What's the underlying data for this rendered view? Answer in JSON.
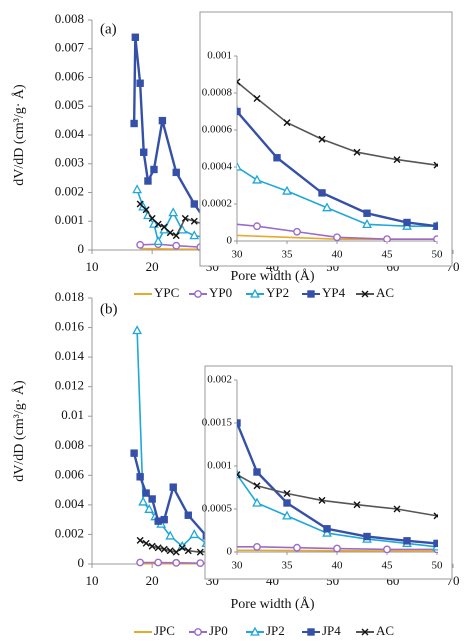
{
  "chart_data": [
    {
      "type": "line",
      "label": "(a)",
      "xlabel": "Pore width (Å)",
      "ylabel": "dV/dD (cm³/g· Å)",
      "xlim": [
        10,
        70
      ],
      "ylim": [
        0,
        0.008
      ],
      "xticks": [
        10,
        20,
        30,
        40,
        50,
        60,
        70
      ],
      "yticks": [
        0,
        0.001,
        0.002,
        0.003,
        0.004,
        0.005,
        0.006,
        0.007,
        0.008
      ],
      "legend": "bottom",
      "series": [
        {
          "name": "YPC",
          "color": "#e8a92a",
          "marker": "none",
          "x": [
            18,
            25,
            30,
            40,
            50
          ],
          "values": [
            5e-05,
            3e-05,
            3e-05,
            1e-05,
            1e-05
          ]
        },
        {
          "name": "YP0",
          "color": "#9b6bc8",
          "marker": "circle",
          "x": [
            18,
            21,
            24,
            28,
            32,
            36,
            40,
            45,
            50
          ],
          "values": [
            0.00018,
            0.0002,
            0.00015,
            0.0001,
            8e-05,
            5e-05,
            2e-05,
            1e-05,
            1e-05
          ]
        },
        {
          "name": "YP2",
          "color": "#1ea7d8",
          "marker": "triangle",
          "x": [
            17.5,
            18.5,
            19.3,
            20.3,
            21,
            22,
            23.5,
            25,
            27,
            30,
            32,
            35,
            39,
            43,
            47,
            50
          ],
          "values": [
            0.0021,
            0.0015,
            0.0012,
            0.0009,
            0.0003,
            0.0007,
            0.0013,
            0.0007,
            0.0005,
            0.0004,
            0.00033,
            0.00027,
            0.00018,
            9e-05,
            8e-05,
            8e-05
          ]
        },
        {
          "name": "YP4",
          "color": "#3550a8",
          "marker": "square",
          "x": [
            17,
            17.2,
            18,
            18.6,
            19.3,
            20.3,
            21.7,
            24,
            27,
            30,
            34,
            38.5,
            43,
            47,
            50
          ],
          "values": [
            0.0044,
            0.0074,
            0.0058,
            0.0034,
            0.0024,
            0.0028,
            0.0045,
            0.0027,
            0.0016,
            0.0007,
            0.00045,
            0.00026,
            0.00015,
            0.0001,
            8e-05
          ]
        },
        {
          "name": "AC",
          "color": "#555555",
          "marker": "x",
          "x": [
            18,
            19,
            20,
            21,
            22,
            23,
            24,
            25.5,
            27,
            28.5,
            30,
            32,
            35,
            38.5,
            42,
            46,
            50,
            56,
            62,
            67
          ],
          "values": [
            0.0016,
            0.0014,
            0.0011,
            0.0009,
            0.0008,
            0.0006,
            0.0005,
            0.0011,
            0.001,
            0.0009,
            0.00086,
            0.00077,
            0.00064,
            0.00055,
            0.00048,
            0.00044,
            0.00041,
            0.00038,
            0.00035,
            0.00033
          ]
        }
      ],
      "inset": {
        "xlim": [
          30,
          50
        ],
        "ylim": [
          0,
          0.001
        ],
        "xticks": [
          30,
          35,
          40,
          45,
          50
        ],
        "yticks": [
          0,
          0.0002,
          0.0004,
          0.0006,
          0.0008,
          0.001
        ]
      }
    },
    {
      "type": "line",
      "label": "(b)",
      "xlabel": "Pore width (Å)",
      "ylabel": "dV/dD (cm³/g· Å)",
      "xlim": [
        10,
        70
      ],
      "ylim": [
        0,
        0.018
      ],
      "xticks": [
        10,
        20,
        30,
        40,
        50,
        60,
        70
      ],
      "yticks": [
        0,
        0.002,
        0.004,
        0.006,
        0.008,
        0.01,
        0.012,
        0.014,
        0.016,
        0.018
      ],
      "legend": "bottom",
      "series": [
        {
          "name": "JPC",
          "color": "#e8a92a",
          "marker": "none",
          "x": [
            18,
            30,
            50
          ],
          "values": [
            2e-05,
            2e-05,
            1e-05
          ]
        },
        {
          "name": "JP0",
          "color": "#9b6bc8",
          "marker": "circle",
          "x": [
            18,
            21,
            24,
            28,
            32,
            36,
            40,
            45,
            50
          ],
          "values": [
            0.0001,
            0.0001,
            8e-05,
            6e-05,
            6e-05,
            5e-05,
            4e-05,
            3e-05,
            3e-05
          ]
        },
        {
          "name": "JP2",
          "color": "#1ea7d8",
          "marker": "triangle",
          "x": [
            17.5,
            18.5,
            19.5,
            20.5,
            21.5,
            23,
            25,
            27,
            29,
            30,
            32,
            35,
            39,
            43,
            47,
            50
          ],
          "values": [
            0.0158,
            0.0042,
            0.0037,
            0.0032,
            0.0027,
            0.0019,
            0.0012,
            0.002,
            0.0014,
            0.0009,
            0.00057,
            0.00042,
            0.00022,
            0.00015,
            0.0001,
            6e-05
          ]
        },
        {
          "name": "JP4",
          "color": "#3550a8",
          "marker": "square",
          "x": [
            17,
            18,
            19,
            20,
            21,
            22,
            23.5,
            26,
            29,
            30,
            32,
            35,
            39,
            43,
            47,
            50
          ],
          "values": [
            0.0075,
            0.0059,
            0.0048,
            0.0044,
            0.0029,
            0.003,
            0.0052,
            0.0033,
            0.0019,
            0.0015,
            0.00093,
            0.00057,
            0.00027,
            0.00018,
            0.00013,
            0.0001
          ]
        },
        {
          "name": "AC",
          "color": "#555555",
          "marker": "x",
          "x": [
            18,
            19,
            20,
            21,
            22,
            23,
            24,
            25,
            26,
            28,
            30,
            32,
            35,
            38.5,
            42,
            46,
            50,
            56,
            62,
            68
          ],
          "values": [
            0.0016,
            0.0014,
            0.0012,
            0.0011,
            0.001,
            0.0009,
            0.0008,
            0.0011,
            0.0009,
            0.0008,
            0.0009,
            0.00077,
            0.00068,
            0.0006,
            0.00055,
            0.0005,
            0.00042,
            0.00038,
            0.00033,
            0.0003
          ]
        }
      ],
      "inset": {
        "xlim": [
          30,
          50
        ],
        "ylim": [
          0,
          0.002
        ],
        "xticks": [
          30,
          35,
          40,
          45,
          50
        ],
        "yticks": [
          0,
          0.0005,
          0.001,
          0.0015,
          0.002
        ]
      }
    }
  ]
}
